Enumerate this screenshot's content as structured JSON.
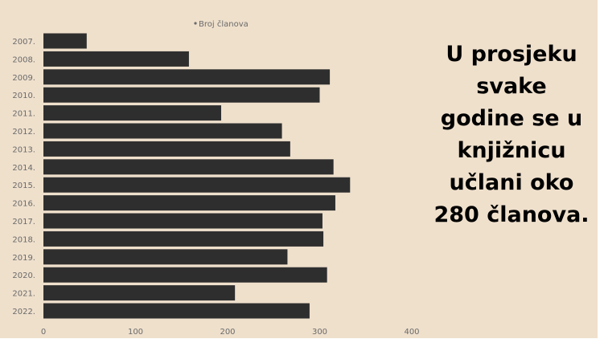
{
  "colors": {
    "background": "#efe0cc",
    "bar": "#2e2e2e",
    "text": "#000000",
    "tick": "#6a6a6a"
  },
  "chart_data": {
    "type": "bar",
    "orientation": "horizontal",
    "categories": [
      "2007.",
      "2008.",
      "2009.",
      "2010.",
      "2011.",
      "2012.",
      "2013.",
      "2014.",
      "2015.",
      "2016.",
      "2017.",
      "2018.",
      "2019.",
      "2020.",
      "2021.",
      "2022."
    ],
    "series": [
      {
        "name": "Broj članova",
        "values": [
          47,
          158,
          311,
          300,
          193,
          259,
          268,
          315,
          333,
          317,
          303,
          304,
          265,
          308,
          208,
          289
        ]
      }
    ],
    "xlim": [
      0,
      400
    ],
    "xticks": [
      0,
      100,
      200,
      300,
      400
    ],
    "legend": "top-center",
    "grid": false
  },
  "caption": {
    "lines": [
      "U prosjeku",
      "svake",
      "godine se u",
      "knjižnicu",
      "učlani oko",
      "280 članova."
    ]
  }
}
